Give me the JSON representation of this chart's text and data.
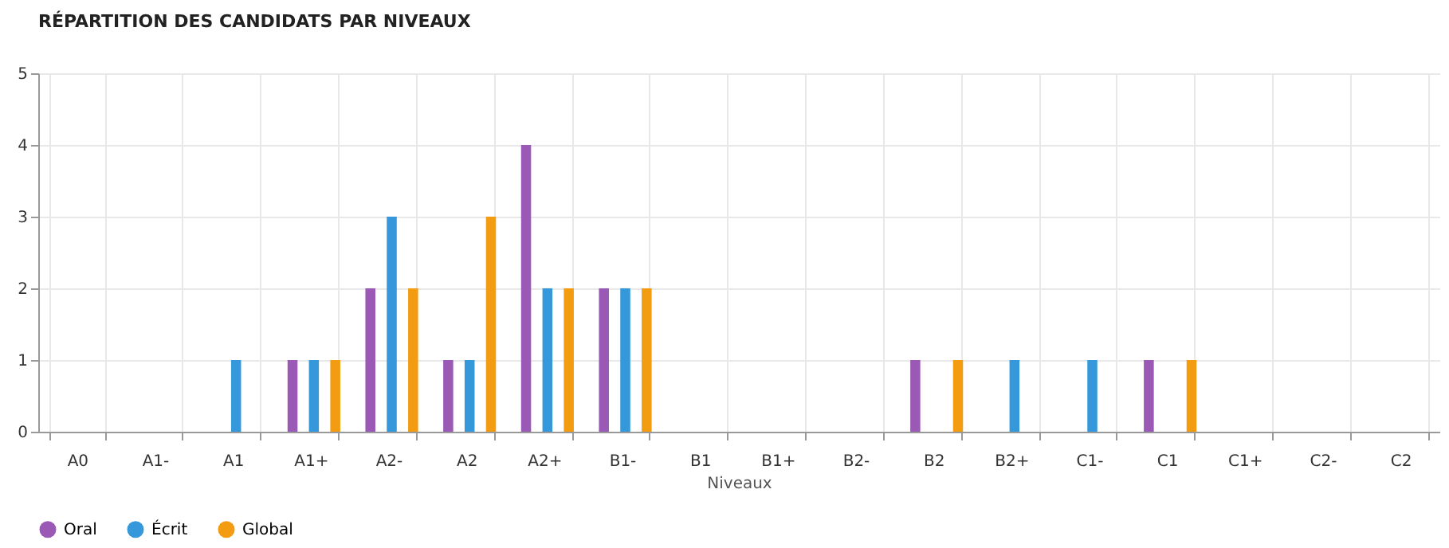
{
  "chart_data": {
    "type": "bar",
    "title": "RÉPARTITION DES CANDIDATS PAR NIVEAUX",
    "xlabel": "Niveaux",
    "categories": [
      "A0",
      "A1-",
      "A1",
      "A1+",
      "A2-",
      "A2",
      "A2+",
      "B1-",
      "B1",
      "B1+",
      "B2-",
      "B2",
      "B2+",
      "C1-",
      "C1",
      "C1+",
      "C2-",
      "C2"
    ],
    "series": [
      {
        "name": "Oral",
        "color": "#9b59b6",
        "values": [
          0,
          0,
          0,
          1,
          2,
          1,
          4,
          2,
          0,
          0,
          0,
          1,
          0,
          0,
          1,
          0,
          0,
          0
        ]
      },
      {
        "name": "Écrit",
        "color": "#3498db",
        "values": [
          0,
          0,
          1,
          1,
          3,
          1,
          2,
          2,
          0,
          0,
          0,
          0,
          1,
          1,
          0,
          0,
          0,
          0
        ]
      },
      {
        "name": "Global",
        "color": "#f39c12",
        "values": [
          0,
          0,
          0,
          1,
          2,
          3,
          2,
          2,
          0,
          0,
          0,
          1,
          0,
          0,
          1,
          0,
          0,
          0
        ]
      }
    ],
    "ylim": [
      0,
      5
    ],
    "yticks": [
      0,
      1,
      2,
      3,
      4,
      5
    ],
    "grid": true,
    "legend": "bottom"
  }
}
